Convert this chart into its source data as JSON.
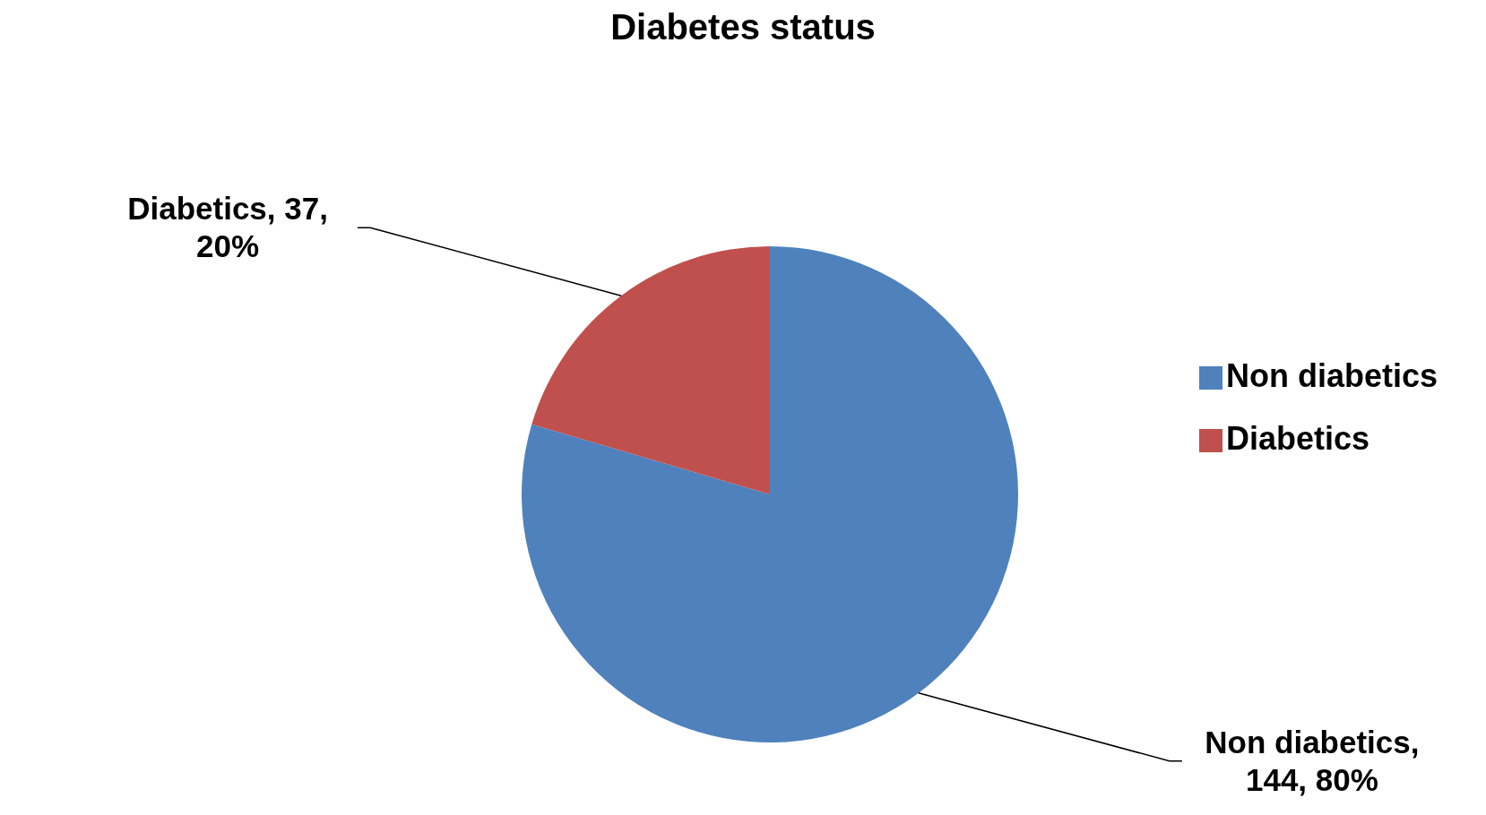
{
  "chart_data": {
    "type": "pie",
    "title": "Diabetes status",
    "categories": [
      "Non diabetics",
      "Diabetics"
    ],
    "values": [
      144,
      37
    ],
    "colors": [
      "#4f81bd",
      "#c0504d"
    ],
    "value_labels": [
      "Non diabetics, 144, 80%",
      "Diabetics, 37, 20%"
    ],
    "legend": "right"
  }
}
